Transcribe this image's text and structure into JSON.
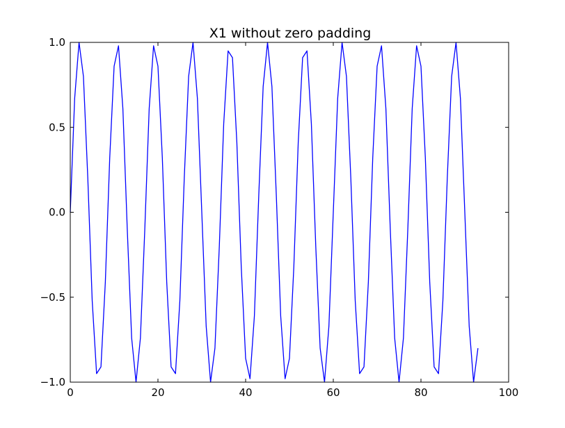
{
  "chart_data": {
    "type": "line",
    "title": "X1 without zero padding",
    "xlabel": "",
    "ylabel": "",
    "xlim": [
      0,
      100
    ],
    "ylim": [
      -1.0,
      1.0
    ],
    "x_ticks": [
      0,
      20,
      40,
      60,
      80,
      100
    ],
    "x_tick_labels": [
      "0",
      "20",
      "40",
      "60",
      "80",
      "100"
    ],
    "y_ticks": [
      -1.0,
      -0.5,
      0.0,
      0.5,
      1.0
    ],
    "y_tick_labels": [
      "−1.0",
      "−0.5",
      "0.0",
      "0.5",
      "1.0"
    ],
    "grid": false,
    "legend": "none",
    "series": [
      {
        "color": "#0000ff",
        "x": [
          0,
          1,
          2,
          3,
          4,
          5,
          6,
          7,
          8,
          9,
          10,
          11,
          12,
          13,
          14,
          15,
          16,
          17,
          18,
          19,
          20,
          21,
          22,
          23,
          24,
          25,
          26,
          27,
          28,
          29,
          30,
          31,
          32,
          33,
          34,
          35,
          36,
          37,
          38,
          39,
          40,
          41,
          42,
          43,
          44,
          45,
          46,
          47,
          48,
          49,
          50,
          51,
          52,
          53,
          54,
          55,
          56,
          57,
          58,
          59,
          60,
          61,
          62,
          63,
          64,
          65,
          66,
          67,
          68,
          69,
          70,
          71,
          72,
          73,
          74,
          75,
          76,
          77,
          78,
          79,
          80,
          81,
          82,
          83,
          84,
          85,
          86,
          87,
          88,
          89,
          90,
          91,
          92,
          93
        ],
        "y": [
          0.0,
          0.67,
          1.0,
          0.8,
          0.2,
          -0.52,
          -0.95,
          -0.91,
          -0.41,
          0.32,
          0.86,
          0.98,
          0.61,
          -0.1,
          -0.74,
          -1.0,
          -0.74,
          -0.1,
          0.61,
          0.98,
          0.86,
          0.32,
          -0.41,
          -0.91,
          -0.95,
          -0.52,
          0.2,
          0.8,
          1.0,
          0.67,
          0.0,
          -0.67,
          -1.0,
          -0.8,
          -0.2,
          0.52,
          0.95,
          0.91,
          0.41,
          -0.32,
          -0.86,
          -0.98,
          -0.61,
          0.1,
          0.74,
          1.0,
          0.74,
          0.1,
          -0.61,
          -0.98,
          -0.86,
          -0.32,
          0.41,
          0.91,
          0.95,
          0.52,
          -0.2,
          -0.8,
          -1.0,
          -0.67,
          0.0,
          0.67,
          1.0,
          0.8,
          0.2,
          -0.52,
          -0.95,
          -0.91,
          -0.41,
          0.32,
          0.86,
          0.98,
          0.61,
          -0.1,
          -0.74,
          -1.0,
          -0.74,
          -0.1,
          0.61,
          0.98,
          0.86,
          0.32,
          -0.41,
          -0.91,
          -0.95,
          -0.52,
          0.2,
          0.8,
          1.0,
          0.67,
          0.0,
          -0.67,
          -1.0,
          -0.8
        ]
      }
    ]
  }
}
